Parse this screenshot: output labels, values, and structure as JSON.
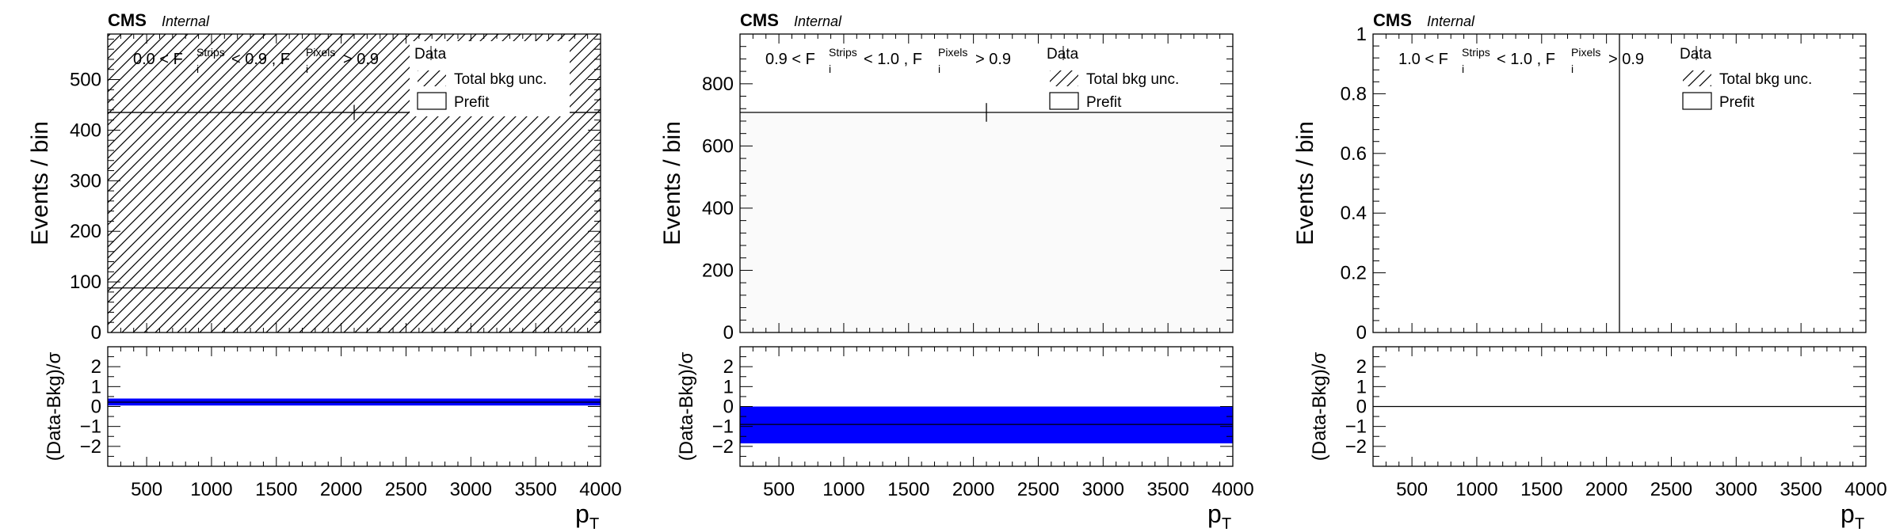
{
  "chart_data": [
    {
      "type": "bar",
      "cms_label": "CMS",
      "cms_sublabel": "Internal",
      "region_label": {
        "lo": "0.0",
        "hi": "0.9",
        "pix": "0.9"
      },
      "ylabel": "Events / bin",
      "xlabel": "p",
      "xlabel_sub": "T",
      "ylim": [
        0,
        590
      ],
      "yticks": [
        0,
        100,
        200,
        300,
        400,
        500
      ],
      "xlim": [
        200,
        4000
      ],
      "xticks": [
        500,
        1000,
        1500,
        2000,
        2500,
        3000,
        3500,
        4000
      ],
      "bkg_value": 88,
      "unc_band": [
        0,
        590
      ],
      "data_point": {
        "x": 2100,
        "y": 435,
        "err": 15
      },
      "data_line_from_x": 200,
      "ratio": {
        "ylabel": "(Data-Bkg)/σ",
        "ylim": [
          -3,
          3
        ],
        "yticks": [
          -2,
          -1,
          0,
          1,
          2
        ],
        "band": [
          0.05,
          0.4
        ],
        "line": 0.22
      },
      "legend": [
        "Data",
        "Total bkg unc.",
        "Prefit"
      ]
    },
    {
      "type": "bar",
      "cms_label": "CMS",
      "cms_sublabel": "Internal",
      "region_label": {
        "lo": "0.9",
        "hi": "1.0",
        "pix": "0.9"
      },
      "ylabel": "Events / bin",
      "xlabel": "p",
      "xlabel_sub": "T",
      "ylim": [
        0,
        960
      ],
      "yticks": [
        0,
        200,
        400,
        600,
        800
      ],
      "xlim": [
        200,
        4000
      ],
      "xticks": [
        500,
        1000,
        1500,
        2000,
        2500,
        3000,
        3500,
        4000
      ],
      "bkg_value": 708,
      "unc_band": null,
      "data_point": {
        "x": 2100,
        "y": 708,
        "err": 30
      },
      "data_line_from_x": 200,
      "ratio": {
        "ylabel": "(Data-Bkg)/σ",
        "ylim": [
          -3,
          3
        ],
        "yticks": [
          -2,
          -1,
          0,
          1,
          2
        ],
        "band": [
          -1.85,
          0.0
        ],
        "line": -0.9
      },
      "legend": [
        "Data",
        "Total bkg unc.",
        "Prefit"
      ]
    },
    {
      "type": "bar",
      "cms_label": "CMS",
      "cms_sublabel": "Internal",
      "region_label": {
        "lo": "1.0",
        "hi": "1.0",
        "pix": "0.9"
      },
      "ylabel": "Events / bin",
      "xlabel": "p",
      "xlabel_sub": "T",
      "ylim": [
        0,
        1
      ],
      "yticks": [
        0,
        0.2,
        0.4,
        0.6,
        0.8,
        1
      ],
      "xlim": [
        200,
        4000
      ],
      "xticks": [
        500,
        1000,
        1500,
        2000,
        2500,
        3000,
        3500,
        4000
      ],
      "bkg_value": null,
      "unc_band": null,
      "data_point": null,
      "vertical_line_x": 2100,
      "ratio": {
        "ylabel": "(Data-Bkg)/σ",
        "ylim": [
          -3,
          3
        ],
        "yticks": [
          -2,
          -1,
          0,
          1,
          2
        ],
        "band": null,
        "line": 0
      },
      "legend": [
        "Data",
        "Total bkg unc.",
        "Prefit"
      ]
    }
  ],
  "colors": {
    "ratio_band": "#0000ff",
    "frame": "#000000",
    "hatch": "#000000",
    "band_fill": "#fafafa"
  }
}
